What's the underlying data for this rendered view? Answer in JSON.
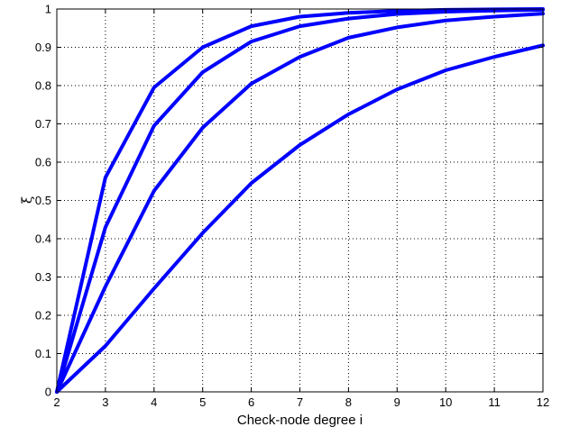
{
  "chart_data": {
    "type": "line",
    "title": "",
    "xlabel": "Check-node degree i",
    "ylabel": "ξ",
    "xlim": [
      2,
      12
    ],
    "ylim": [
      0,
      1
    ],
    "xticks": [
      2,
      3,
      4,
      5,
      6,
      7,
      8,
      9,
      10,
      11,
      12
    ],
    "yticks": [
      0,
      0.1,
      0.2,
      0.3,
      0.4,
      0.5,
      0.6,
      0.7,
      0.8,
      0.9,
      1
    ],
    "grid": true,
    "grid_style": "dotted",
    "legend": false,
    "line_color": "#0000ff",
    "x": [
      2,
      3,
      4,
      5,
      6,
      7,
      8,
      9,
      10,
      11,
      12
    ],
    "series": [
      {
        "values": [
          0.0,
          0.56,
          0.795,
          0.9,
          0.955,
          0.98,
          0.99,
          0.995,
          0.998,
          0.999,
          1.0
        ]
      },
      {
        "values": [
          0.0,
          0.43,
          0.695,
          0.835,
          0.915,
          0.955,
          0.975,
          0.987,
          0.993,
          0.996,
          0.998
        ]
      },
      {
        "values": [
          0.0,
          0.275,
          0.525,
          0.69,
          0.805,
          0.875,
          0.925,
          0.952,
          0.97,
          0.98,
          0.988
        ]
      },
      {
        "values": [
          0.0,
          0.12,
          0.27,
          0.415,
          0.545,
          0.645,
          0.725,
          0.79,
          0.84,
          0.875,
          0.905
        ]
      }
    ]
  }
}
